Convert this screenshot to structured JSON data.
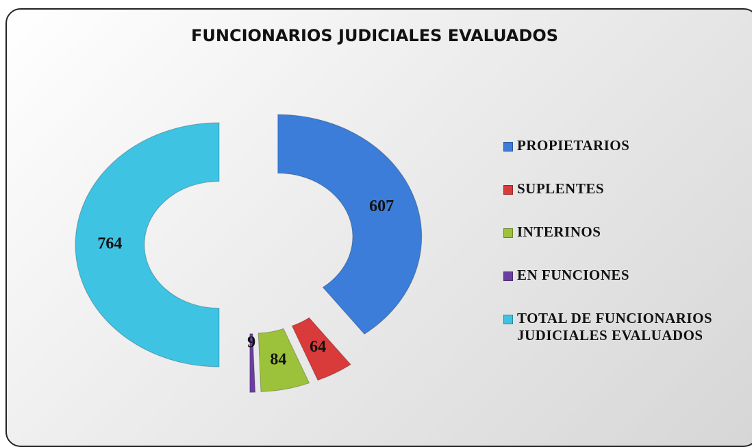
{
  "chart_data": {
    "type": "donut",
    "title": "FUNCIONARIOS JUDICIALES EVALUADOS",
    "categories": [
      "PROPIETARIOS",
      "SUPLENTES",
      "INTERINOS",
      "EN FUNCIONES",
      "TOTAL DE FUNCIONARIOS JUDICIALES EVALUADOS"
    ],
    "values": [
      607,
      64,
      84,
      9,
      764
    ],
    "colors": [
      "#3b7dd8",
      "#d93a3a",
      "#9cc23b",
      "#6b3fa0",
      "#3ec3e3"
    ],
    "legend": "right"
  }
}
